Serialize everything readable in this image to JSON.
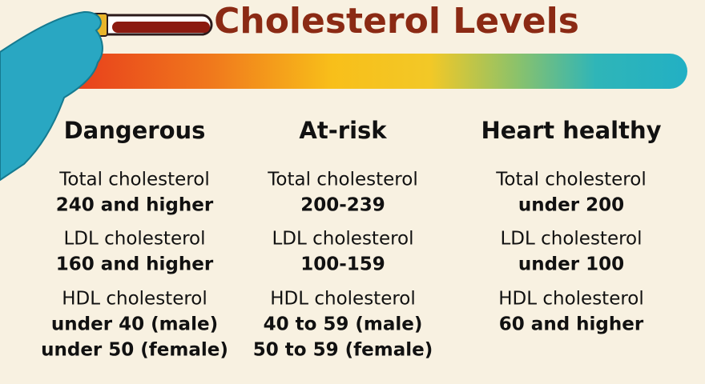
{
  "title": "Cholesterol Levels",
  "columns": [
    {
      "heading": "Dangerous",
      "items": [
        {
          "label": "Total cholesterol",
          "values": [
            "240 and higher"
          ]
        },
        {
          "label": "LDL cholesterol",
          "values": [
            "160 and higher"
          ]
        },
        {
          "label": "HDL cholesterol",
          "values": [
            "under 40 (male)",
            "under 50 (female)"
          ]
        }
      ]
    },
    {
      "heading": "At-risk",
      "items": [
        {
          "label": "Total cholesterol",
          "values": [
            "200-239"
          ]
        },
        {
          "label": "LDL cholesterol",
          "values": [
            "100-159"
          ]
        },
        {
          "label": "HDL cholesterol",
          "values": [
            "40 to 59 (male)",
            "50 to 59 (female)"
          ]
        }
      ]
    },
    {
      "heading": "Heart healthy",
      "items": [
        {
          "label": "Total cholesterol",
          "values": [
            "under 200"
          ]
        },
        {
          "label": "LDL cholesterol",
          "values": [
            "under 100"
          ]
        },
        {
          "label": "HDL cholesterol",
          "values": [
            "60 and higher"
          ]
        }
      ]
    }
  ]
}
